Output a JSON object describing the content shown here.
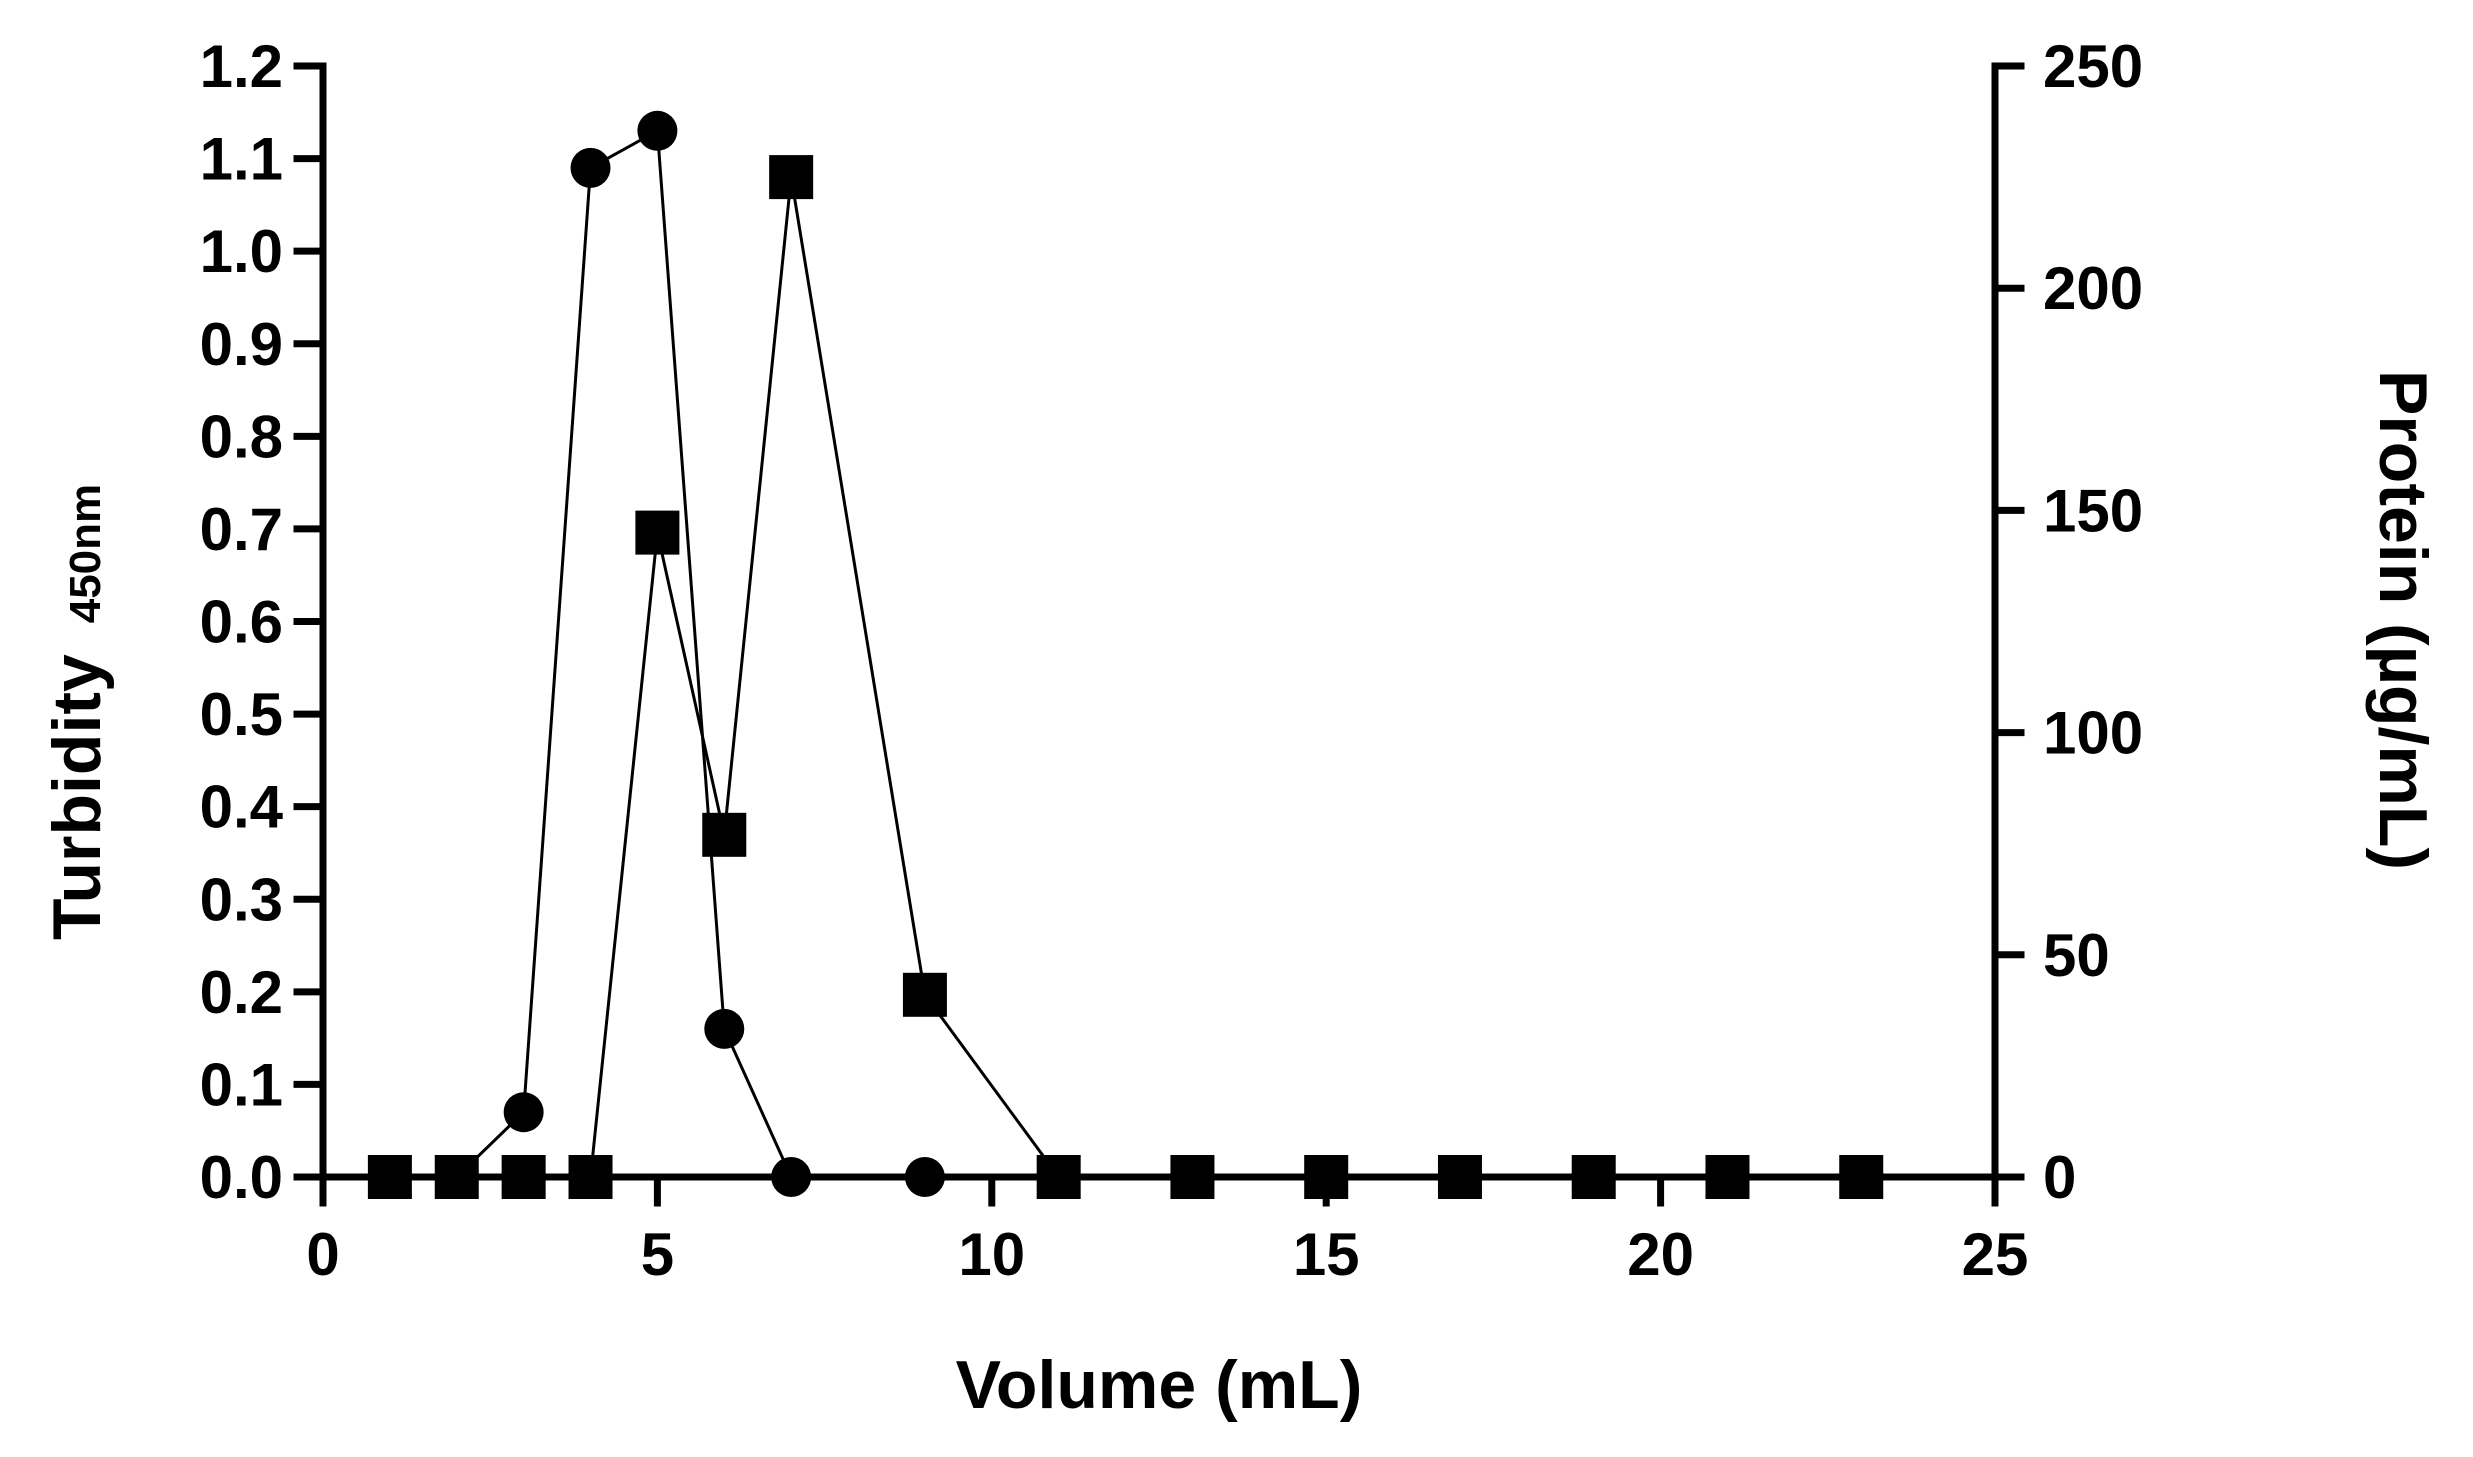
{
  "chart_data": {
    "type": "line",
    "xlabel": "Volume (mL)",
    "ylabel": {
      "main": "Turbidity",
      "sub": "450nm"
    },
    "y2label": "Protein (µg/mL)",
    "xlim": [
      0,
      25
    ],
    "ylim": [
      0,
      1.2
    ],
    "y2lim": [
      0,
      250
    ],
    "x_ticks": [
      0,
      5,
      10,
      15,
      20,
      25
    ],
    "x_tick_labels": [
      "0",
      "5",
      "10",
      "15",
      "20",
      "25"
    ],
    "y_ticks": [
      0,
      0.1,
      0.2,
      0.3,
      0.4,
      0.5,
      0.6,
      0.7,
      0.8,
      0.9,
      1.0,
      1.1,
      1.2
    ],
    "y_tick_labels": [
      "0.0",
      "0.1",
      "0.2",
      "0.3",
      "0.4",
      "0.5",
      "0.6",
      "0.7",
      "0.8",
      "0.9",
      "1.0",
      "1.1",
      "1.2"
    ],
    "y2_ticks": [
      0,
      50,
      100,
      150,
      200,
      250
    ],
    "y2_tick_labels": [
      "0",
      "50",
      "100",
      "150",
      "200",
      "250"
    ],
    "grid": false,
    "legend": "none",
    "series": [
      {
        "marker": "circle",
        "axis": "left",
        "color": "#000000",
        "x": [
          1,
          2,
          3,
          4,
          5,
          6,
          7,
          9,
          11,
          13,
          15,
          17,
          19,
          21,
          23
        ],
        "y": [
          0,
          0,
          0.07,
          1.09,
          1.13,
          0.16,
          0,
          0,
          0,
          0,
          0,
          0,
          0,
          0,
          0
        ]
      },
      {
        "marker": "square",
        "axis": "right",
        "color": "#000000",
        "x": [
          1,
          2,
          3,
          4,
          5,
          6,
          7,
          9,
          11,
          13,
          15,
          17,
          19,
          21,
          23
        ],
        "y": [
          0,
          0,
          0,
          0,
          145,
          77,
          225,
          41,
          0,
          0,
          0,
          0,
          0,
          0,
          0
        ]
      }
    ]
  }
}
